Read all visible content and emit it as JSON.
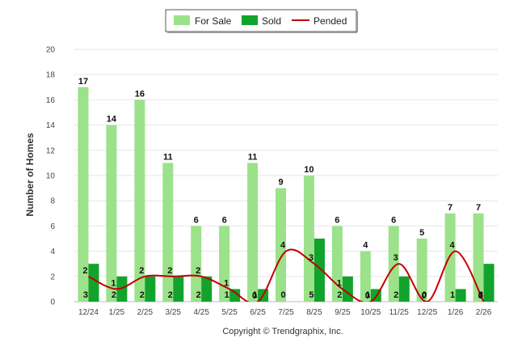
{
  "chart_data": {
    "type": "bar",
    "categories": [
      "12/24",
      "1/25",
      "2/25",
      "3/25",
      "4/25",
      "5/25",
      "6/25",
      "7/25",
      "8/25",
      "9/25",
      "10/25",
      "11/25",
      "12/25",
      "1/26",
      "2/26"
    ],
    "series": [
      {
        "name": "For Sale",
        "type": "bar",
        "color": "#9be28a",
        "values": [
          17,
          14,
          16,
          11,
          6,
          6,
          11,
          9,
          10,
          6,
          4,
          6,
          5,
          7,
          7
        ]
      },
      {
        "name": "Sold",
        "type": "bar",
        "color": "#12a32c",
        "values": [
          3,
          2,
          2,
          2,
          2,
          1,
          1,
          0,
          5,
          2,
          1,
          2,
          0,
          1,
          3
        ]
      },
      {
        "name": "Pended",
        "type": "line",
        "color": "#c00000",
        "values": [
          2,
          1,
          2,
          2,
          2,
          1,
          0,
          4,
          3,
          1,
          0,
          3,
          0,
          4,
          0
        ]
      }
    ],
    "ylabel": "Number of Homes",
    "xlabel": "",
    "ylim": [
      0,
      20
    ],
    "yticks": [
      0,
      2,
      4,
      6,
      8,
      10,
      12,
      14,
      16,
      18,
      20
    ],
    "grid": true,
    "legend_position": "top-center"
  },
  "footer": {
    "copyright": "Copyright © Trendgraphix, Inc."
  }
}
